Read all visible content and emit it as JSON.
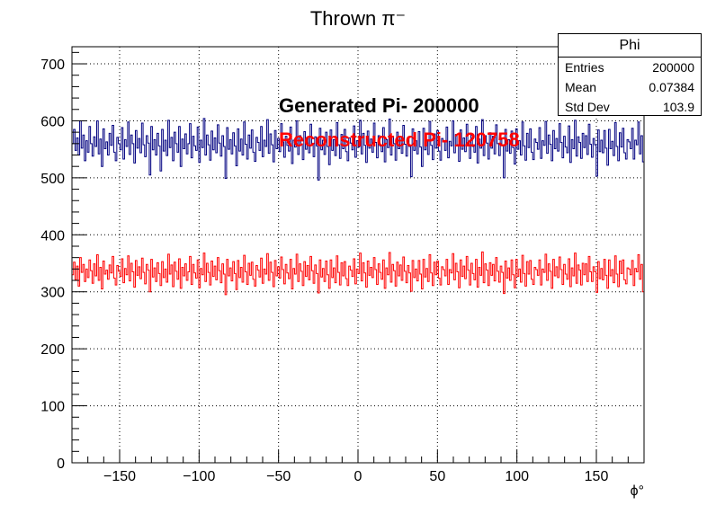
{
  "chart_data": {
    "type": "line",
    "title": "Thrown π⁻",
    "xlabel": "ϕ°",
    "ylabel": "",
    "xlim": [
      -180,
      180
    ],
    "ylim": [
      0,
      730
    ],
    "xticks": [
      -150,
      -100,
      -50,
      0,
      50,
      100,
      150
    ],
    "yticks": [
      0,
      100,
      200,
      300,
      400,
      500,
      600,
      700
    ],
    "grid": true,
    "bins": 360,
    "series": [
      {
        "name": "Generated Pi- 200000",
        "color": "#000080",
        "mean_level": 556,
        "spread": 24,
        "values": [
          560,
          585,
          548,
          570,
          540,
          600,
          552,
          575,
          530,
          565,
          545,
          590,
          560,
          538,
          572,
          555,
          600,
          542,
          568,
          520,
          586,
          551,
          563,
          540,
          578,
          557,
          592,
          545,
          530,
          571,
          560,
          549,
          588,
          533,
          567,
          555,
          598,
          541,
          575,
          560,
          526,
          583,
          552,
          569,
          544,
          596,
          558,
          537,
          574,
          561,
          505,
          590,
          549,
          567,
          540,
          578,
          556,
          512,
          585,
          547,
          566,
          539,
          601,
          553,
          571,
          530,
          580,
          560,
          545,
          590,
          520,
          568,
          551,
          577,
          542,
          560,
          595,
          535,
          573,
          556,
          548,
          589,
          527,
          566,
          553,
          604,
          540,
          575,
          558,
          531,
          582,
          549,
          570,
          544,
          593,
          561,
          538,
          574,
          555,
          499,
          588,
          550,
          567,
          542,
          579,
          556,
          521,
          586,
          547,
          568,
          540,
          598,
          559,
          533,
          575,
          552,
          584,
          545,
          529,
          571,
          562,
          548,
          590,
          537,
          566,
          555,
          602,
          543,
          577,
          558,
          528,
          583,
          551,
          569,
          546,
          595,
          563,
          536,
          573,
          557,
          547,
          589,
          525,
          566,
          554,
          600,
          541,
          574,
          559,
          532,
          581,
          550,
          571,
          544,
          594,
          560,
          537,
          572,
          556,
          496,
          587,
          549,
          566,
          541,
          580,
          555,
          523,
          584,
          548,
          567,
          539,
          597,
          558,
          534,
          576,
          551,
          585,
          546,
          530,
          570,
          561,
          549,
          591,
          536,
          565,
          554,
          601,
          542,
          578,
          557,
          527,
          582,
          552,
          568,
          545,
          596,
          562,
          535,
          574,
          556,
          546,
          588,
          528,
          567,
          553,
          603,
          540,
          573,
          560,
          531,
          580,
          551,
          572,
          543,
          592,
          559,
          538,
          571,
          555,
          502,
          586,
          548,
          565,
          542,
          581,
          554,
          520,
          587,
          549,
          566,
          541,
          599,
          557,
          532,
          577,
          552,
          583,
          547,
          531,
          569,
          563,
          548,
          589,
          535,
          564,
          556,
          600,
          544,
          576,
          558,
          529,
          584,
          550,
          570,
          546,
          594,
          561,
          534,
          575,
          555,
          545,
          590,
          526,
          568,
          552,
          602,
          539,
          574,
          561,
          533,
          579,
          552,
          573,
          542,
          593,
          560,
          539,
          570,
          557,
          500,
          585,
          547,
          567,
          543,
          582,
          553,
          524,
          586,
          550,
          565,
          540,
          598,
          556,
          531,
          578,
          553,
          586,
          545,
          532,
          568,
          562,
          550,
          588,
          534,
          565,
          557,
          599,
          543,
          575,
          559,
          530,
          583,
          551,
          569,
          547,
          595,
          562,
          535,
          573,
          554,
          544,
          591,
          527,
          567,
          551,
          601,
          538,
          572,
          562,
          534,
          578,
          553,
          574,
          541,
          594,
          559,
          536,
          569,
          558,
          503,
          584,
          546,
          566,
          544,
          583,
          552,
          522,
          585,
          551,
          564,
          539,
          597,
          555,
          530,
          579,
          554,
          587,
          544,
          533,
          567,
          563,
          551,
          587,
          533,
          566,
          558,
          598,
          542,
          574,
          528
        ]
      },
      {
        "name": "Reconstructed Pi- 120758",
        "color": "#ff0000",
        "mean_level": 335,
        "spread": 18,
        "values": [
          330,
          352,
          321,
          345,
          310,
          360,
          334,
          348,
          318,
          340,
          325,
          356,
          337,
          315,
          349,
          328,
          365,
          320,
          343,
          305,
          354,
          331,
          338,
          322,
          347,
          333,
          362,
          324,
          312,
          346,
          336,
          327,
          358,
          316,
          341,
          330,
          363,
          319,
          350,
          335,
          308,
          355,
          329,
          344,
          323,
          359,
          334,
          314,
          348,
          338,
          300,
          357,
          326,
          342,
          318,
          351,
          332,
          311,
          353,
          325,
          340,
          317,
          366,
          331,
          347,
          309,
          352,
          336,
          322,
          358,
          306,
          343,
          328,
          349,
          320,
          335,
          362,
          313,
          348,
          333,
          324,
          356,
          307,
          341,
          330,
          368,
          318,
          350,
          334,
          312,
          354,
          327,
          345,
          321,
          360,
          337,
          316,
          349,
          331,
          295,
          357,
          328,
          342,
          319,
          353,
          332,
          304,
          355,
          325,
          343,
          317,
          364,
          335,
          313,
          350,
          329,
          352,
          322,
          310,
          346,
          338,
          326,
          359,
          315,
          340,
          331,
          367,
          320,
          352,
          334,
          309,
          355,
          328,
          344,
          324,
          361,
          339,
          314,
          348,
          333,
          323,
          357,
          305,
          341,
          331,
          366,
          318,
          349,
          336,
          311,
          353,
          327,
          346,
          321,
          362,
          337,
          315,
          347,
          332,
          298,
          356,
          326,
          341,
          318,
          354,
          330,
          306,
          356,
          325,
          342,
          316,
          363,
          334,
          312,
          351,
          328,
          353,
          323,
          311,
          345,
          338,
          327,
          358,
          314,
          340,
          332,
          368,
          319,
          351,
          333,
          308,
          354,
          329,
          343,
          325,
          360,
          339,
          313,
          349,
          334,
          322,
          356,
          306,
          342,
          330,
          369,
          317,
          348,
          337,
          310,
          352,
          328,
          347,
          320,
          361,
          336,
          316,
          346,
          333,
          301,
          355,
          325,
          340,
          319,
          355,
          331,
          305,
          357,
          326,
          341,
          318,
          365,
          333,
          311,
          352,
          330,
          354,
          324,
          312,
          344,
          339,
          328,
          357,
          313,
          339,
          333,
          367,
          321,
          350,
          335,
          307,
          356,
          327,
          345,
          323,
          362,
          338,
          312,
          350,
          332,
          321,
          357,
          308,
          343,
          329,
          370,
          316,
          349,
          338,
          311,
          351,
          329,
          348,
          319,
          360,
          336,
          317,
          345,
          334,
          297,
          354,
          324,
          342,
          320,
          356,
          330,
          307,
          357,
          327,
          340,
          317,
          364,
          332,
          310,
          353,
          331,
          355,
          322,
          313,
          343,
          339,
          329,
          356,
          312,
          340,
          334,
          366,
          320,
          349,
          336,
          306,
          357,
          328,
          344,
          325,
          361,
          339,
          313,
          348,
          331,
          322,
          358,
          309,
          342,
          328,
          368,
          315,
          347,
          338,
          312,
          350,
          330,
          349,
          318,
          362,
          335,
          318,
          344,
          335,
          299,
          353,
          323,
          341,
          321,
          357,
          329,
          306,
          356,
          328,
          339,
          316,
          363,
          331,
          309,
          354,
          332,
          356,
          321,
          314,
          342,
          340,
          330,
          355,
          311,
          341,
          335,
          365,
          322,
          348,
          300
        ]
      }
    ]
  },
  "annotations": {
    "generated": "Generated Pi- 200000",
    "reconstructed": "Reconstructed Pi- 120758"
  },
  "stats_box": {
    "title": "Phi",
    "rows": [
      {
        "label": "Entries",
        "value": "200000"
      },
      {
        "label": "Mean",
        "value": "0.07384"
      },
      {
        "label": "Std Dev",
        "value": "103.9"
      }
    ]
  },
  "colors": {
    "generated": "#000080",
    "reconstructed": "#ff0000"
  }
}
